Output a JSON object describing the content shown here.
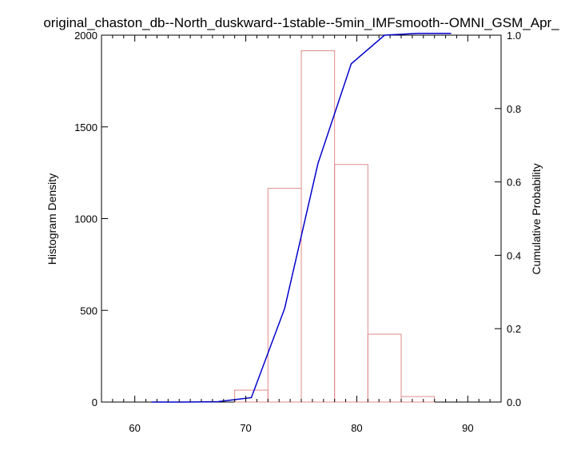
{
  "chart_data": {
    "type": "bar",
    "title": "original_chaston_db--North_duskward--1stable--5min_IMFsmooth--OMNI_GSM_Apr_",
    "xlabel": "",
    "ylabel": "Histogram Density",
    "y2label": "Cumulative Probability",
    "xlim": [
      57,
      93
    ],
    "ylim": [
      0,
      2000
    ],
    "y2lim": [
      0,
      1.0
    ],
    "x_ticks": [
      60,
      70,
      80,
      90
    ],
    "x_minor_step": 1,
    "y_ticks": [
      0,
      500,
      1000,
      1500,
      2000
    ],
    "y2_ticks": [
      0.0,
      0.2,
      0.4,
      0.6,
      0.8,
      1.0
    ],
    "y2_tick_labels": [
      "0.0",
      "0.2",
      "0.4",
      "0.6",
      "0.8",
      "1.0"
    ],
    "grid": false,
    "bins": [
      {
        "x0": 60.0,
        "x1": 63.0,
        "value": 0
      },
      {
        "x0": 63.0,
        "x1": 66.0,
        "value": 0
      },
      {
        "x0": 66.0,
        "x1": 69.0,
        "value": 0
      },
      {
        "x0": 69.0,
        "x1": 72.0,
        "value": 65
      },
      {
        "x0": 72.0,
        "x1": 75.0,
        "value": 1165
      },
      {
        "x0": 75.0,
        "x1": 78.0,
        "value": 1915
      },
      {
        "x0": 78.0,
        "x1": 81.0,
        "value": 1295
      },
      {
        "x0": 81.0,
        "x1": 84.0,
        "value": 370
      },
      {
        "x0": 84.0,
        "x1": 87.0,
        "value": 30
      },
      {
        "x0": 87.0,
        "x1": 90.0,
        "value": 0
      }
    ],
    "cumulative": {
      "x": [
        61.5,
        64.5,
        67.5,
        70.5,
        73.5,
        76.5,
        79.5,
        82.5,
        85.5,
        88.5
      ],
      "y": [
        0.0,
        0.0,
        0.001,
        0.012,
        0.255,
        0.65,
        0.922,
        1.0,
        1.005,
        1.005
      ]
    },
    "colors": {
      "histogram": "#e08a8a",
      "cumulative": "#0000cc",
      "axes": "#000000"
    }
  }
}
